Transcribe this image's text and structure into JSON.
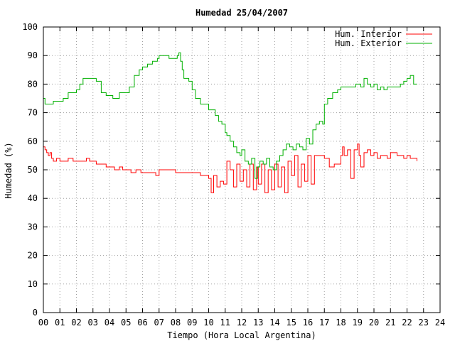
{
  "chart_data": {
    "type": "line",
    "title": "Humedad 25/04/2007",
    "xlabel": "Tiempo (Hora Local Argentina)",
    "ylabel": "Humedad (%)",
    "xlim": [
      0,
      24
    ],
    "ylim": [
      0,
      100
    ],
    "xticks": [
      "00",
      "01",
      "02",
      "03",
      "04",
      "05",
      "06",
      "07",
      "08",
      "09",
      "10",
      "11",
      "12",
      "13",
      "14",
      "15",
      "16",
      "17",
      "18",
      "19",
      "20",
      "21",
      "22",
      "23",
      "24"
    ],
    "yticks": [
      "0",
      "10",
      "20",
      "30",
      "40",
      "50",
      "60",
      "70",
      "80",
      "90",
      "100"
    ],
    "grid": true,
    "legend_position": "top-right",
    "series": [
      {
        "name": "Hum. Interior",
        "color": "#ff0000",
        "x": [
          0.0,
          0.1,
          0.2,
          0.3,
          0.4,
          0.5,
          0.6,
          0.8,
          1.0,
          1.2,
          1.5,
          1.8,
          2.0,
          2.3,
          2.6,
          2.8,
          3.0,
          3.2,
          3.5,
          3.8,
          4.0,
          4.3,
          4.6,
          4.8,
          5.0,
          5.3,
          5.6,
          5.9,
          6.0,
          6.3,
          6.6,
          6.8,
          7.0,
          7.2,
          7.6,
          8.0,
          8.3,
          8.6,
          9.0,
          9.5,
          10.0,
          10.15,
          10.3,
          10.5,
          10.7,
          10.9,
          11.1,
          11.3,
          11.5,
          11.7,
          11.9,
          12.1,
          12.3,
          12.5,
          12.7,
          12.9,
          13.0,
          13.2,
          13.4,
          13.6,
          13.8,
          14.0,
          14.2,
          14.4,
          14.6,
          14.8,
          15.0,
          15.2,
          15.4,
          15.6,
          15.8,
          16.0,
          16.2,
          16.4,
          16.6,
          16.8,
          17.0,
          17.3,
          17.6,
          18.0,
          18.1,
          18.2,
          18.4,
          18.6,
          18.8,
          19.0,
          19.1,
          19.2,
          19.4,
          19.6,
          19.8,
          20.0,
          20.2,
          20.4,
          20.6,
          20.8,
          21.0,
          21.2,
          21.4,
          21.6,
          21.8,
          22.0,
          22.2,
          22.4,
          22.6
        ],
        "values": [
          58,
          57,
          56,
          55,
          56,
          54,
          53,
          54,
          53,
          53,
          54,
          53,
          53,
          53,
          54,
          53,
          53,
          52,
          52,
          51,
          51,
          50,
          51,
          50,
          50,
          49,
          50,
          49,
          49,
          49,
          49,
          48,
          50,
          50,
          50,
          49,
          49,
          49,
          49,
          48,
          47,
          42,
          48,
          44,
          46,
          45,
          53,
          50,
          44,
          52,
          46,
          50,
          44,
          52,
          43,
          51,
          45,
          52,
          42,
          50,
          43,
          52,
          44,
          51,
          42,
          53,
          48,
          55,
          44,
          52,
          46,
          55,
          45,
          55,
          55,
          55,
          54,
          51,
          52,
          55,
          58,
          55,
          57,
          47,
          57,
          59,
          55,
          51,
          56,
          57,
          55,
          56,
          54,
          55,
          55,
          54,
          56,
          56,
          55,
          55,
          54,
          55,
          54,
          54,
          53
        ]
      },
      {
        "name": "Hum. Exterior",
        "color": "#00b000",
        "x": [
          0.0,
          0.1,
          0.3,
          0.6,
          0.9,
          1.2,
          1.5,
          1.8,
          2.0,
          2.2,
          2.4,
          2.8,
          3.0,
          3.2,
          3.5,
          3.8,
          4.0,
          4.2,
          4.6,
          5.0,
          5.2,
          5.5,
          5.8,
          6.0,
          6.3,
          6.6,
          6.9,
          7.0,
          7.3,
          7.6,
          7.9,
          8.1,
          8.2,
          8.3,
          8.4,
          8.5,
          8.8,
          9.0,
          9.2,
          9.5,
          10.0,
          10.4,
          10.6,
          10.8,
          11.0,
          11.1,
          11.3,
          11.5,
          11.7,
          11.9,
          12.0,
          12.2,
          12.4,
          12.6,
          12.8,
          12.95,
          13.1,
          13.3,
          13.5,
          13.7,
          13.9,
          14.1,
          14.3,
          14.5,
          14.7,
          14.9,
          15.1,
          15.3,
          15.5,
          15.7,
          15.9,
          16.1,
          16.3,
          16.5,
          16.7,
          16.9,
          17.0,
          17.2,
          17.5,
          17.8,
          18.0,
          18.3,
          18.6,
          18.9,
          19.0,
          19.2,
          19.4,
          19.6,
          19.8,
          20.0,
          20.2,
          20.4,
          20.6,
          20.8,
          21.0,
          21.2,
          21.4,
          21.6,
          21.8,
          22.0,
          22.2,
          22.4,
          22.6
        ],
        "values": [
          75,
          73,
          73,
          74,
          74,
          75,
          77,
          77,
          78,
          80,
          82,
          82,
          82,
          81,
          77,
          76,
          76,
          75,
          77,
          77,
          79,
          83,
          85,
          86,
          87,
          88,
          89,
          90,
          90,
          89,
          89,
          90,
          91,
          88,
          85,
          82,
          81,
          78,
          75,
          73,
          71,
          69,
          67,
          66,
          63,
          62,
          60,
          58,
          56,
          55,
          57,
          53,
          52,
          54,
          47,
          51,
          53,
          52,
          54,
          51,
          50,
          53,
          55,
          57,
          59,
          58,
          57,
          59,
          58,
          57,
          61,
          59,
          64,
          66,
          67,
          66,
          73,
          75,
          77,
          78,
          79,
          79,
          79,
          80,
          80,
          79,
          82,
          80,
          79,
          80,
          78,
          79,
          78,
          79,
          79,
          79,
          79,
          80,
          81,
          82,
          83,
          80,
          80
        ]
      }
    ]
  }
}
